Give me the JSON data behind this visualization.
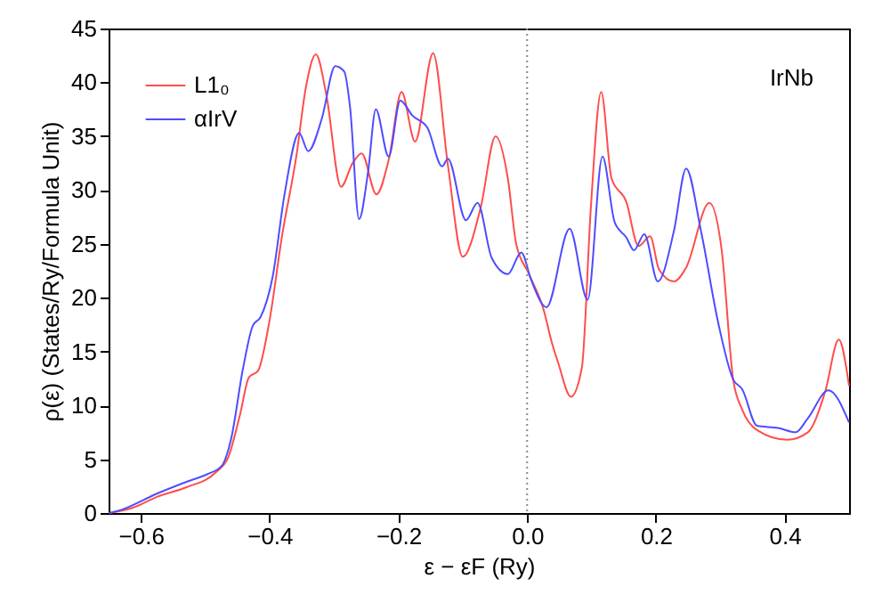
{
  "chart_data": {
    "type": "line",
    "xlabel": "ε − εF (Ry)",
    "ylabel": "ρ(ε) (States/Ry/Formula Unit)",
    "annotations": [
      "IrNb"
    ],
    "xlim": [
      -0.65,
      0.5
    ],
    "xticks": [
      {
        "value": -0.6,
        "label": "−0.6"
      },
      {
        "value": -0.4,
        "label": "−0.4"
      },
      {
        "value": -0.2,
        "label": "−0.2"
      },
      {
        "value": 0,
        "label": "0.0"
      },
      {
        "value": 0.2,
        "label": "0.2"
      },
      {
        "value": 0.4,
        "label": "0.4"
      }
    ],
    "ylim": [
      0,
      45
    ],
    "yticks": [
      0,
      5,
      10,
      15,
      20,
      25,
      30,
      35,
      40,
      45
    ],
    "grid": false,
    "legend": "top left",
    "marker": "none",
    "line_style": "solid",
    "ref_lines": [
      {
        "axis": "x",
        "value": 0,
        "color": "#888888",
        "line_style": "dotted"
      }
    ],
    "series": [
      {
        "name": "L1₀",
        "color": "#ff4d4d",
        "x": [
          -0.649,
          -0.612,
          -0.575,
          -0.529,
          -0.483,
          -0.464,
          -0.446,
          -0.432,
          -0.418,
          -0.4,
          -0.381,
          -0.358,
          -0.344,
          -0.328,
          -0.312,
          -0.289,
          -0.271,
          -0.257,
          -0.234,
          -0.215,
          -0.195,
          -0.174,
          -0.146,
          -0.123,
          -0.1,
          -0.072,
          -0.049,
          -0.03,
          -0.017,
          0.002,
          0.025,
          0.039,
          0.048,
          0.068,
          0.085,
          0.099,
          0.115,
          0.131,
          0.154,
          0.173,
          0.191,
          0.205,
          0.228,
          0.247,
          0.283,
          0.302,
          0.32,
          0.334,
          0.357,
          0.404,
          0.436,
          0.463,
          0.484,
          0.5
        ],
        "values": [
          0,
          0.5,
          1.5,
          2.4,
          3.8,
          5.2,
          9.1,
          12.6,
          13.2,
          17.9,
          25.6,
          33.3,
          39.4,
          42.6,
          38.9,
          30.3,
          32.5,
          33.4,
          29.6,
          32.8,
          39.1,
          34.5,
          42.7,
          32.3,
          23.8,
          28.4,
          35,
          31.1,
          25,
          22.3,
          19,
          15.7,
          14,
          10.8,
          13.5,
          28.4,
          39.1,
          31.1,
          28.9,
          24.8,
          25.7,
          22.6,
          21.5,
          22.8,
          28.8,
          24.5,
          12.4,
          9.6,
          7.7,
          6.8,
          7.5,
          11.3,
          16.1,
          11.8
        ]
      },
      {
        "name": "αIrV",
        "color": "#4d4dff",
        "x": [
          -0.649,
          -0.63,
          -0.575,
          -0.529,
          -0.497,
          -0.474,
          -0.46,
          -0.441,
          -0.426,
          -0.414,
          -0.395,
          -0.377,
          -0.354,
          -0.34,
          -0.319,
          -0.298,
          -0.284,
          -0.275,
          -0.261,
          -0.247,
          -0.235,
          -0.215,
          -0.197,
          -0.178,
          -0.155,
          -0.132,
          -0.123,
          -0.095,
          -0.077,
          -0.055,
          -0.03,
          -0.009,
          0.006,
          0.025,
          0.03,
          0.066,
          0.094,
          0.117,
          0.136,
          0.154,
          0.166,
          0.182,
          0.203,
          0.228,
          0.247,
          0.27,
          0.297,
          0.32,
          0.334,
          0.357,
          0.39,
          0.417,
          0.436,
          0.468,
          0.5
        ],
        "values": [
          0,
          0.3,
          1.8,
          2.9,
          3.6,
          4.4,
          6.8,
          13.5,
          17.4,
          18.2,
          22,
          29.5,
          35.3,
          33.6,
          36.6,
          41.5,
          41,
          37.7,
          27.3,
          31.7,
          37.5,
          33.1,
          38.3,
          36.9,
          35.8,
          32.2,
          32.9,
          27.2,
          28.8,
          23.7,
          22.2,
          24.2,
          21.7,
          19.3,
          19.1,
          26.4,
          19.8,
          33.1,
          27,
          25.6,
          24.4,
          25.9,
          21.5,
          26.2,
          32,
          26.2,
          17.6,
          12.4,
          11.5,
          8.1,
          7.9,
          7.5,
          8.8,
          11.4,
          8.4
        ]
      }
    ]
  }
}
